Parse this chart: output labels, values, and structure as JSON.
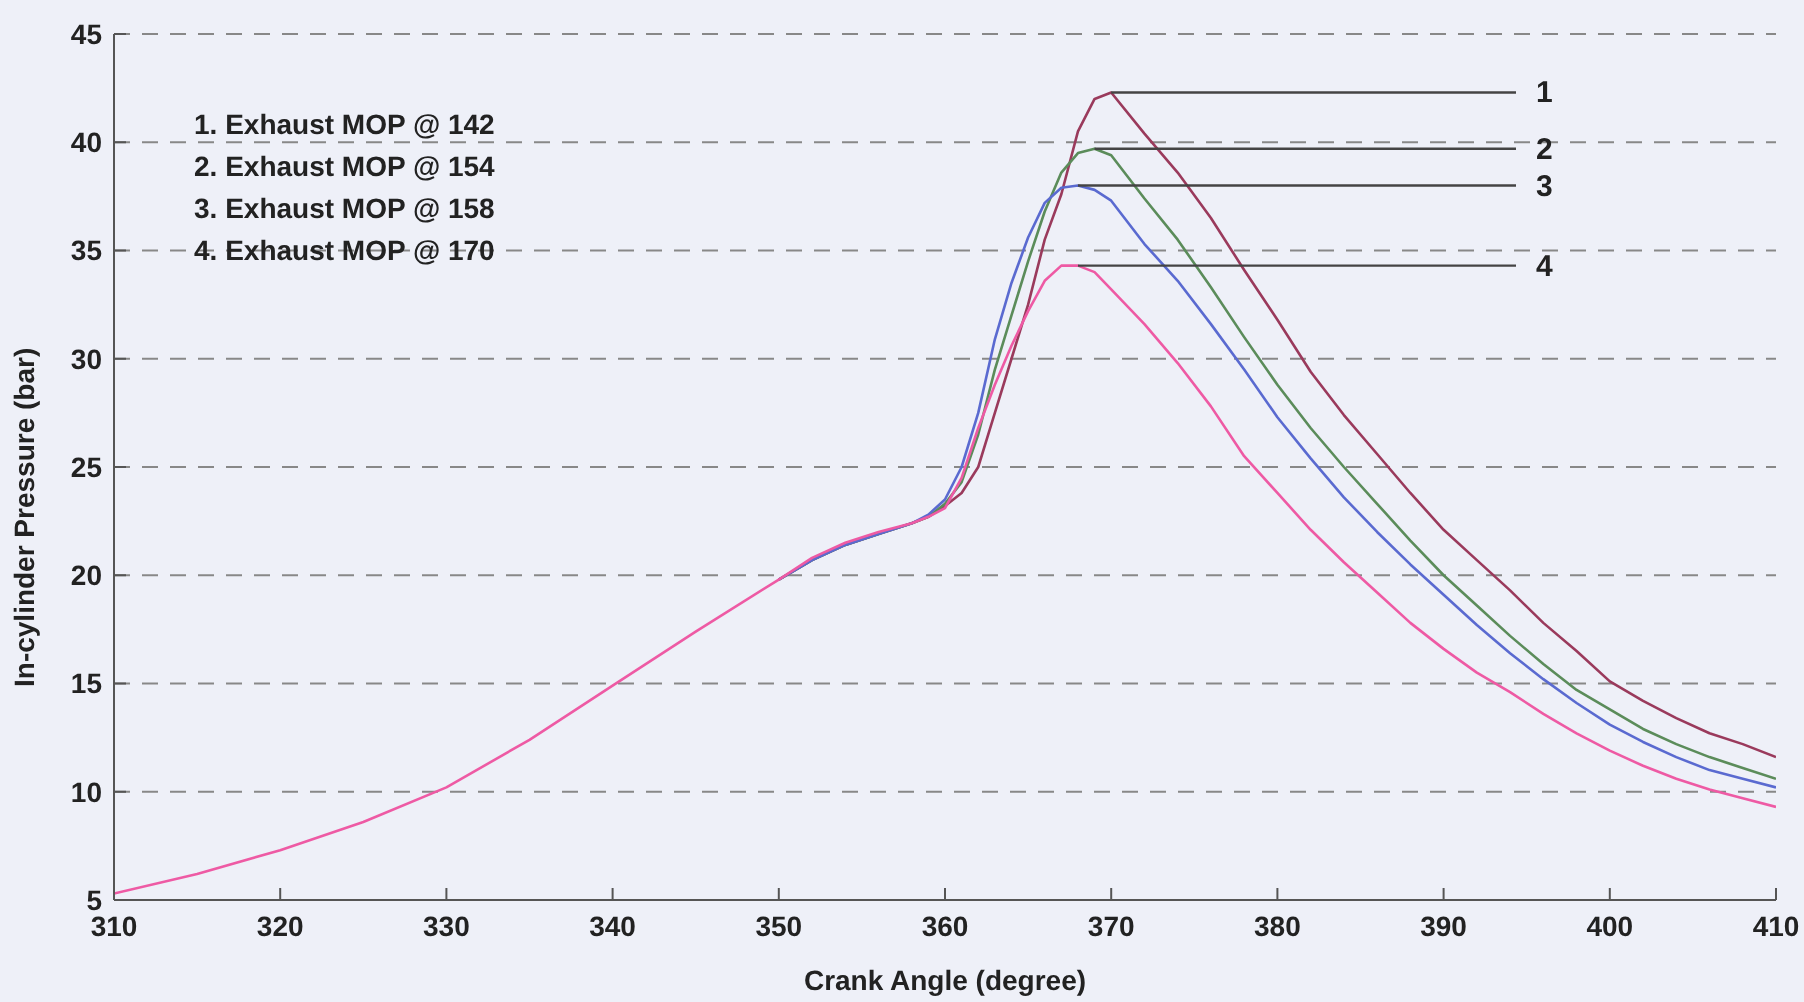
{
  "chart_data": {
    "type": "line",
    "xlabel": "Crank Angle (degree)",
    "ylabel": "In-cylinder Pressure (bar)",
    "x": [
      310,
      315,
      320,
      325,
      330,
      335,
      340,
      345,
      350,
      352,
      354,
      356,
      358,
      359,
      360,
      361,
      362,
      363,
      364,
      365,
      366,
      367,
      368,
      369,
      370,
      372,
      374,
      376,
      378,
      380,
      382,
      384,
      386,
      388,
      390,
      392,
      394,
      396,
      398,
      400,
      402,
      404,
      406,
      408,
      410
    ],
    "series": [
      {
        "color": "#9a3a5c",
        "values": [
          null,
          null,
          null,
          null,
          null,
          null,
          null,
          null,
          19.8,
          20.7,
          21.4,
          21.9,
          22.4,
          22.7,
          23.2,
          23.8,
          25,
          27.5,
          30,
          32.5,
          35.5,
          37.6,
          40.5,
          42,
          42.3,
          40.4,
          38.6,
          36.5,
          34.1,
          31.8,
          29.4,
          27.4,
          25.6,
          23.8,
          22.1,
          20.7,
          19.3,
          17.8,
          16.5,
          15.1,
          14.2,
          13.4,
          12.7,
          12.2,
          11.6
        ]
      },
      {
        "color": "#5b8c5a",
        "values": [
          null,
          null,
          null,
          null,
          null,
          null,
          null,
          null,
          19.8,
          20.7,
          21.4,
          21.9,
          22.4,
          22.7,
          23.3,
          24.3,
          26.5,
          29.5,
          32,
          34.5,
          36.8,
          38.6,
          39.5,
          39.7,
          39.4,
          37.4,
          35.5,
          33.3,
          31,
          28.8,
          26.8,
          25,
          23.3,
          21.6,
          20,
          18.6,
          17.2,
          15.9,
          14.7,
          13.8,
          12.9,
          12.2,
          11.6,
          11.1,
          10.6
        ]
      },
      {
        "color": "#5a6ad0",
        "values": [
          null,
          null,
          null,
          null,
          null,
          null,
          null,
          null,
          19.8,
          20.7,
          21.4,
          21.9,
          22.4,
          22.8,
          23.5,
          25,
          27.5,
          30.9,
          33.5,
          35.6,
          37.2,
          37.9,
          38,
          37.8,
          37.3,
          35.3,
          33.6,
          31.6,
          29.5,
          27.3,
          25.4,
          23.6,
          22,
          20.5,
          19.1,
          17.7,
          16.4,
          15.2,
          14.1,
          13.1,
          12.3,
          11.6,
          11,
          10.6,
          10.2
        ]
      },
      {
        "color": "#ee5aa4",
        "values": [
          5.3,
          6.2,
          7.3,
          8.6,
          10.2,
          12.4,
          14.9,
          17.4,
          19.8,
          20.8,
          21.5,
          22,
          22.4,
          22.7,
          23.1,
          24.5,
          26.8,
          28.8,
          30.6,
          32.2,
          33.6,
          34.3,
          34.3,
          34,
          33.2,
          31.6,
          29.8,
          27.8,
          25.5,
          23.8,
          22.1,
          20.6,
          19.2,
          17.8,
          16.6,
          15.5,
          14.6,
          13.6,
          12.7,
          11.9,
          11.2,
          10.6,
          10.1,
          9.7,
          9.3
        ]
      }
    ],
    "xlim": [
      310,
      410
    ],
    "xticks": [
      310,
      320,
      330,
      340,
      350,
      360,
      370,
      380,
      390,
      400,
      410
    ],
    "ylim": [
      5,
      45
    ],
    "yticks": [
      5,
      10,
      15,
      20,
      25,
      30,
      35,
      40,
      45
    ],
    "grid": "y",
    "marker": "none",
    "line_style": "solid",
    "annotations": [
      "1. Exhaust MOP @ 142",
      "2. Exhaust MOP @ 154",
      "3. Exhaust MOP @ 158",
      "4. Exhaust MOP @ 170",
      {
        "text": "1",
        "x": 370,
        "y": 42.3
      },
      {
        "text": "2",
        "x": 369,
        "y": 39.7
      },
      {
        "text": "3",
        "x": 368,
        "y": 38
      },
      {
        "text": "4",
        "x": 368,
        "y": 34.3
      }
    ]
  }
}
